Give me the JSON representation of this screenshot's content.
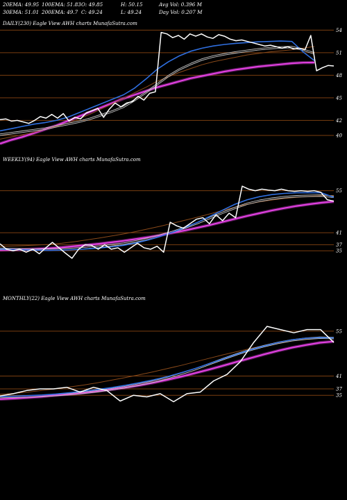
{
  "header": {
    "row1": [
      "20EMA: 49.95",
      "100EMA: 51.83",
      "O: 49.85",
      "H: 50.15",
      "Avg Vol: 0.396  M"
    ],
    "row2": [
      "30EMA: 51.01",
      "200EMA: 49.7",
      "C: 49.24",
      "L: 49.24",
      "Day Vol: 0.207 M"
    ]
  },
  "colors": {
    "background": "#000000",
    "price": "#ffffff",
    "ema_fast": "#2f6fe0",
    "ema_mid": "#c9c9c9",
    "ema_slow": "#8a4a1a",
    "ema_200": "#e040e0",
    "grid": "#7a3e10"
  },
  "chart_data": [
    {
      "type": "line",
      "title": "DAILY(230) Eagle  View  AWH charts MunafaSutra.com",
      "yticks": [
        "54",
        "51",
        "48",
        "45",
        "42",
        "40"
      ],
      "ylim": [
        38.8,
        54.5
      ],
      "grid": true,
      "series": [
        {
          "values": [
            42.1,
            42.2,
            41.9,
            42.0,
            41.8,
            41.6,
            42.0,
            42.5,
            42.3,
            42.8,
            42.3,
            42.9,
            41.9,
            42.4,
            42.2,
            43.0,
            43.3,
            43.6,
            42.4,
            43.5,
            44.3,
            43.8,
            44.3,
            44.5,
            45.2,
            44.7,
            45.6,
            45.8,
            53.7,
            53.5,
            53.0,
            53.3,
            52.8,
            53.5,
            53.2,
            53.5,
            53.1,
            52.9,
            53.4,
            53.2,
            52.8,
            52.6,
            52.7,
            52.5,
            52.3,
            52.1,
            51.9,
            52.0,
            51.8,
            51.6,
            51.8,
            51.5,
            51.6,
            51.4,
            53.3,
            48.6,
            49.0,
            49.3,
            49.24
          ]
        },
        {
          "values": [
            40.6,
            40.9,
            41.2,
            41.5,
            41.7,
            42.0,
            42.4,
            43.0,
            43.6,
            44.2,
            44.8,
            45.4,
            46.3,
            47.5,
            48.8,
            49.8,
            50.6,
            51.2,
            51.6,
            51.9,
            52.1,
            52.25,
            52.35,
            52.45,
            52.5,
            52.55,
            52.5,
            51.1,
            49.95
          ]
        },
        {
          "values": [
            40.2,
            40.4,
            40.6,
            40.8,
            41.0,
            41.3,
            41.6,
            41.9,
            42.3,
            42.8,
            43.3,
            43.9,
            44.8,
            45.8,
            46.9,
            48.0,
            48.9,
            49.6,
            50.2,
            50.6,
            50.9,
            51.15,
            51.35,
            51.55,
            51.7,
            51.8,
            51.85,
            51.5,
            51.01
          ]
        },
        {
          "values": [
            39.5,
            39.8,
            40.1,
            40.4,
            40.8,
            41.2,
            41.6,
            42.2,
            42.8,
            43.5,
            44.2,
            44.9,
            45.7,
            46.4,
            47.2,
            47.8,
            48.4,
            48.9,
            49.4,
            49.8,
            50.1,
            50.4,
            50.7,
            50.9,
            51.1,
            51.25,
            51.4,
            51.6,
            51.83
          ]
        },
        {
          "values": [
            38.9,
            39.4,
            39.8,
            40.3,
            40.8,
            41.3,
            41.9,
            42.5,
            43.1,
            43.7,
            44.3,
            44.9,
            45.4,
            45.9,
            46.4,
            46.8,
            47.2,
            47.6,
            47.9,
            48.2,
            48.5,
            48.75,
            48.95,
            49.15,
            49.3,
            49.45,
            49.6,
            49.68,
            49.7
          ]
        }
      ]
    },
    {
      "type": "line",
      "title": "WEEKLY(94) Eagle  View  AWH charts MunafaSutra.com",
      "yticks": [
        "55",
        "41",
        "37",
        "35"
      ],
      "ylim": [
        26,
        63
      ],
      "grid": true,
      "series": [
        {
          "values": [
            37.3,
            35.5,
            35.0,
            35.5,
            34.5,
            35.5,
            34.0,
            36.0,
            37.8,
            36.0,
            34.2,
            32.5,
            35.5,
            37.0,
            36.8,
            35.5,
            37.0,
            35.5,
            36.0,
            34.5,
            36.0,
            37.5,
            36.0,
            35.5,
            36.5,
            34.5,
            44.5,
            43.3,
            42.5,
            44.0,
            45.5,
            46.0,
            44.0,
            47.0,
            45.0,
            47.5,
            46.0,
            56.5,
            55.5,
            55.0,
            55.5,
            55.2,
            55.0,
            55.5,
            55.0,
            54.8,
            55.0,
            54.8,
            55.0,
            54.5,
            52.0,
            51.5
          ]
        },
        {
          "values": [
            35.6,
            35.4,
            35.3,
            35.2,
            35.1,
            35.2,
            35.4,
            35.6,
            35.9,
            36.3,
            36.8,
            37.6,
            38.6,
            39.8,
            41.2,
            42.8,
            44.5,
            46.5,
            48.5,
            50.5,
            52.0,
            53.0,
            53.7,
            54.1,
            54.3,
            54.35,
            54.3,
            52.8
          ]
        },
        {
          "values": [
            35.9,
            35.8,
            35.7,
            35.6,
            35.6,
            35.7,
            35.9,
            36.2,
            36.6,
            37.1,
            37.6,
            38.4,
            39.3,
            40.4,
            41.6,
            43.0,
            44.5,
            46.2,
            47.9,
            49.5,
            50.9,
            51.9,
            52.6,
            53.1,
            53.4,
            53.55,
            53.6,
            53.2
          ]
        },
        {
          "values": [
            36.5,
            36.6,
            36.7,
            36.9,
            37.1,
            37.5,
            38.0,
            38.6,
            39.2,
            39.9,
            40.6,
            41.4,
            42.3,
            43.2,
            44.2,
            45.2,
            46.2,
            47.3,
            48.4,
            49.5,
            50.5,
            51.3,
            51.9,
            52.4,
            52.8,
            53.1,
            53.3,
            53.4
          ]
        },
        {
          "values": [
            35.2,
            35.3,
            35.4,
            35.6,
            35.8,
            36.1,
            36.5,
            36.9,
            37.3,
            37.8,
            38.3,
            38.9,
            39.5,
            40.2,
            41.0,
            41.8,
            42.7,
            43.6,
            44.6,
            45.6,
            46.6,
            47.5,
            48.4,
            49.2,
            49.9,
            50.5,
            51.0,
            51.4
          ]
        }
      ]
    },
    {
      "type": "line",
      "title": "MONTHLY(22) Eagle  View  AWH charts MunafaSutra.com",
      "yticks": [
        "55",
        "41",
        "37",
        "35"
      ],
      "ylim": [
        24,
        63
      ],
      "grid": true,
      "series": [
        {
          "values": [
            34.8,
            35.5,
            36.5,
            37.0,
            37.0,
            37.5,
            36.0,
            37.5,
            36.5,
            33.2,
            35.0,
            34.5,
            35.5,
            33.0,
            35.5,
            36.0,
            39.5,
            41.5,
            45.5,
            51.5,
            56.5,
            55.5,
            54.5,
            55.5,
            55.5,
            51.5
          ]
        },
        {
          "values": [
            34.6,
            34.7,
            34.9,
            35.1,
            35.4,
            35.8,
            36.3,
            36.8,
            37.4,
            38.1,
            38.9,
            39.8,
            40.8,
            42.0,
            43.3,
            44.8,
            46.3,
            47.8,
            49.2,
            50.4,
            51.5,
            52.3,
            52.8,
            53.0,
            52.9
          ]
        },
        {
          "values": [
            34.7,
            34.8,
            34.9,
            35.1,
            35.3,
            35.6,
            36.0,
            36.5,
            37.1,
            37.8,
            38.6,
            39.5,
            40.6,
            41.9,
            43.3,
            44.9,
            46.5,
            48.0,
            49.4,
            50.6,
            51.6,
            52.4,
            52.9,
            53.2,
            53.1
          ]
        },
        {
          "values": [
            35.3,
            35.6,
            36.0,
            36.5,
            37.0,
            37.6,
            38.2,
            38.9,
            39.7,
            40.5,
            41.4,
            42.3,
            43.3,
            44.3,
            45.4,
            46.5,
            47.6,
            48.6,
            49.6,
            50.5,
            51.3,
            52.0,
            52.5,
            52.9,
            53.0
          ]
        },
        {
          "values": [
            33.8,
            34.0,
            34.3,
            34.6,
            35.0,
            35.4,
            35.8,
            36.3,
            36.8,
            37.4,
            38.1,
            38.9,
            39.8,
            40.8,
            41.9,
            43.0,
            44.2,
            45.4,
            46.6,
            47.8,
            48.9,
            49.9,
            50.7,
            51.4,
            51.8
          ]
        }
      ]
    }
  ]
}
